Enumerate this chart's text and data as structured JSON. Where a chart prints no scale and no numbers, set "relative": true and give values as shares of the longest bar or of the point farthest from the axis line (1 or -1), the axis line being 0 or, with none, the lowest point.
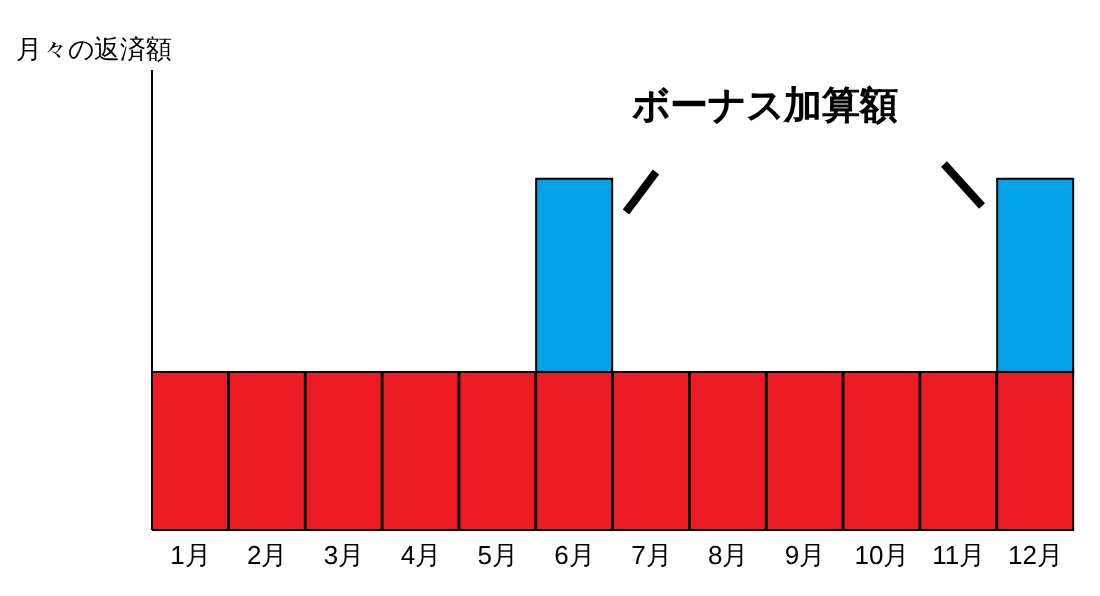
{
  "chart_data": {
    "type": "bar",
    "stacked": true,
    "relative": true,
    "ylabel": "月々の返済額",
    "categories": [
      "1月",
      "2月",
      "3月",
      "4月",
      "5月",
      "6月",
      "7月",
      "8月",
      "9月",
      "10月",
      "11月",
      "12月"
    ],
    "series": [
      {
        "color": "#ed1c24",
        "values": [
          0.45,
          0.45,
          0.45,
          0.45,
          0.45,
          0.45,
          0.45,
          0.45,
          0.45,
          0.45,
          0.45,
          0.45
        ]
      },
      {
        "color": "#00a2e8",
        "values": [
          null,
          null,
          null,
          null,
          null,
          0.55,
          null,
          null,
          null,
          null,
          null,
          0.55
        ]
      }
    ],
    "annotations": [
      "ボーナス加算額"
    ],
    "legend": false,
    "grid": false
  }
}
